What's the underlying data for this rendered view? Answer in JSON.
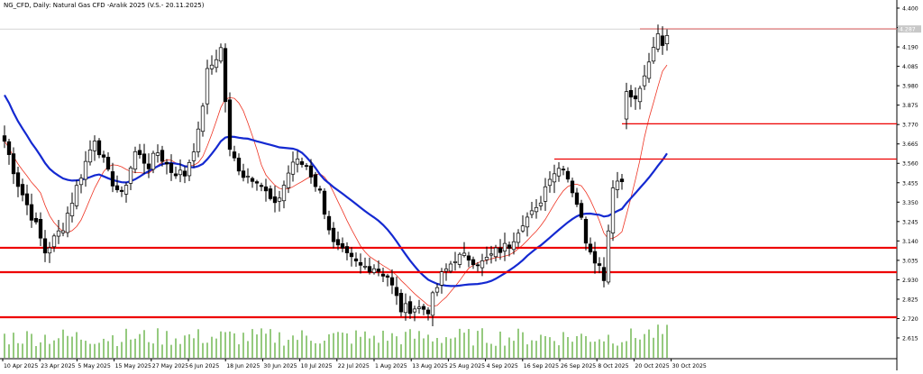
{
  "title": "NG_CFD, Daily: Natural Gas CFD -Aralık 2025 (V.S.- 20.11.2025)",
  "current_price_label": "4.287",
  "chart_data": {
    "type": "candlestick",
    "title": "NG_CFD, Daily: Natural Gas CFD -Aralık 2025 (V.S.- 20.11.2025)",
    "ylim": [
      2.615,
      4.4
    ],
    "y_ticks": [
      "4.400",
      "4.295",
      "4.190",
      "4.085",
      "3.980",
      "3.875",
      "3.770",
      "3.665",
      "3.560",
      "3.455",
      "3.350",
      "3.245",
      "3.140",
      "3.035",
      "2.930",
      "2.825",
      "2.720",
      "2.615"
    ],
    "x_ticks": [
      "10 Apr 2025",
      "23 Apr 2025",
      "5 May 2025",
      "15 May 2025",
      "27 May 2025",
      "6 Jun 2025",
      "18 Jun 2025",
      "30 Jun 2025",
      "10 Jul 2025",
      "22 Jul 2025",
      "1 Aug 2025",
      "13 Aug 2025",
      "25 Aug 2025",
      "4 Sep 2025",
      "16 Sep 2025",
      "26 Sep 2025",
      "8 Oct 2025",
      "20 Oct 2025",
      "30 Oct 2025"
    ],
    "horizontal_levels": [
      {
        "price": 4.287,
        "from_index": 141,
        "thickness": "thin"
      },
      {
        "price": 3.774,
        "from_index": 137,
        "thickness": "thin"
      },
      {
        "price": 3.583,
        "from_index": 122,
        "thickness": "thin"
      },
      {
        "price": 3.103,
        "from_index": 0,
        "thickness": "thick"
      },
      {
        "price": 2.971,
        "from_index": 0,
        "thickness": "thick"
      },
      {
        "price": 2.727,
        "from_index": 0,
        "thickness": "thick"
      }
    ],
    "anchors": [
      [
        0,
        3.68
      ],
      [
        3,
        3.45
      ],
      [
        7,
        3.22
      ],
      [
        9,
        3.08
      ],
      [
        13,
        3.22
      ],
      [
        17,
        3.5
      ],
      [
        20,
        3.7
      ],
      [
        23,
        3.5
      ],
      [
        26,
        3.38
      ],
      [
        29,
        3.62
      ],
      [
        32,
        3.55
      ],
      [
        34,
        3.62
      ],
      [
        37,
        3.52
      ],
      [
        40,
        3.5
      ],
      [
        43,
        3.72
      ],
      [
        45,
        4.05
      ],
      [
        48,
        4.18
      ],
      [
        50,
        3.62
      ],
      [
        53,
        3.5
      ],
      [
        56,
        3.48
      ],
      [
        60,
        3.32
      ],
      [
        64,
        3.57
      ],
      [
        67,
        3.55
      ],
      [
        70,
        3.4
      ],
      [
        73,
        3.12
      ],
      [
        76,
        3.05
      ],
      [
        79,
        3.0
      ],
      [
        82,
        3.0
      ],
      [
        85,
        2.95
      ],
      [
        88,
        2.77
      ],
      [
        91,
        2.78
      ],
      [
        94,
        2.77
      ],
      [
        97,
        2.95
      ],
      [
        100,
        3.05
      ],
      [
        103,
        3.05
      ],
      [
        106,
        3.02
      ],
      [
        109,
        3.08
      ],
      [
        112,
        3.12
      ],
      [
        115,
        3.25
      ],
      [
        118,
        3.3
      ],
      [
        121,
        3.5
      ],
      [
        124,
        3.55
      ],
      [
        127,
        3.35
      ],
      [
        129,
        3.15
      ],
      [
        131,
        3.05
      ],
      [
        133,
        2.95
      ],
      [
        135,
        3.45
      ],
      [
        137,
        3.48
      ],
      [
        138,
        3.95
      ],
      [
        140,
        3.9
      ],
      [
        142,
        4.05
      ],
      [
        144,
        4.2
      ],
      [
        145,
        4.28
      ],
      [
        146,
        4.2
      ],
      [
        147,
        4.25
      ]
    ],
    "volume_ylim": [
      0,
      40
    ],
    "sma_period": 50,
    "sma_color": "#1429d1",
    "ema_period": 20,
    "ema_color": "#ee3322",
    "up_color": "#ffffff",
    "down_color": "#000000",
    "level_color": "#ee0000",
    "volume_color": "#7bbd5f",
    "grid": false
  }
}
